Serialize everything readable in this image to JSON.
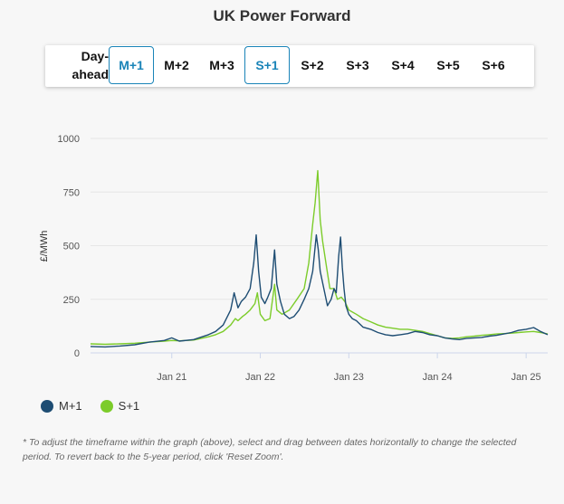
{
  "header": {
    "title": "UK Power Forward"
  },
  "tabs": [
    {
      "label_line1": "Day-",
      "label_line2": "ahead",
      "active": false
    },
    {
      "label": "M+1",
      "active": true
    },
    {
      "label": "M+2",
      "active": false
    },
    {
      "label": "M+3",
      "active": false
    },
    {
      "label": "S+1",
      "active": true
    },
    {
      "label": "S+2",
      "active": false
    },
    {
      "label": "S+3",
      "active": false
    },
    {
      "label": "S+4",
      "active": false
    },
    {
      "label": "S+5",
      "active": false
    },
    {
      "label": "S+6",
      "active": false
    }
  ],
  "colors": {
    "accent": "#1a84b8",
    "m1": "#1e4d73",
    "s1": "#7ccc2a",
    "grid": "#e6e6e6"
  },
  "chart_data": {
    "type": "line",
    "title": "",
    "xlabel": "",
    "ylabel": "£/MWh",
    "ylim": [
      0,
      1000
    ],
    "yticks": [
      0,
      250,
      500,
      750,
      1000
    ],
    "xticks": [
      "Jan 21",
      "Jan 22",
      "Jan 23",
      "Jan 24",
      "Jan 25"
    ],
    "xlim": [
      "2020-02-01",
      "2025-03-31"
    ],
    "grid": true,
    "legend": "bottom-left",
    "series": [
      {
        "name": "M+1",
        "color": "#1e4d73",
        "points": [
          [
            "2020-02-01",
            30
          ],
          [
            "2020-04-01",
            28
          ],
          [
            "2020-06-01",
            32
          ],
          [
            "2020-08-01",
            38
          ],
          [
            "2020-10-01",
            50
          ],
          [
            "2020-12-01",
            58
          ],
          [
            "2021-01-01",
            70
          ],
          [
            "2021-02-01",
            55
          ],
          [
            "2021-04-01",
            62
          ],
          [
            "2021-06-01",
            85
          ],
          [
            "2021-07-01",
            100
          ],
          [
            "2021-08-01",
            130
          ],
          [
            "2021-09-01",
            200
          ],
          [
            "2021-09-15",
            280
          ],
          [
            "2021-10-01",
            210
          ],
          [
            "2021-10-15",
            240
          ],
          [
            "2021-11-01",
            260
          ],
          [
            "2021-11-20",
            300
          ],
          [
            "2021-12-05",
            420
          ],
          [
            "2021-12-15",
            550
          ],
          [
            "2021-12-25",
            380
          ],
          [
            "2022-01-05",
            260
          ],
          [
            "2022-01-20",
            230
          ],
          [
            "2022-02-01",
            260
          ],
          [
            "2022-02-15",
            300
          ],
          [
            "2022-03-01",
            480
          ],
          [
            "2022-03-10",
            320
          ],
          [
            "2022-03-25",
            240
          ],
          [
            "2022-04-10",
            180
          ],
          [
            "2022-05-01",
            160
          ],
          [
            "2022-05-20",
            170
          ],
          [
            "2022-06-10",
            200
          ],
          [
            "2022-07-01",
            250
          ],
          [
            "2022-07-20",
            300
          ],
          [
            "2022-08-05",
            380
          ],
          [
            "2022-08-20",
            550
          ],
          [
            "2022-08-28",
            480
          ],
          [
            "2022-09-05",
            380
          ],
          [
            "2022-09-20",
            300
          ],
          [
            "2022-10-05",
            220
          ],
          [
            "2022-10-20",
            250
          ],
          [
            "2022-11-01",
            300
          ],
          [
            "2022-11-10",
            280
          ],
          [
            "2022-11-20",
            450
          ],
          [
            "2022-11-28",
            540
          ],
          [
            "2022-12-05",
            400
          ],
          [
            "2022-12-12",
            300
          ],
          [
            "2022-12-20",
            220
          ],
          [
            "2023-01-01",
            180
          ],
          [
            "2023-01-15",
            160
          ],
          [
            "2023-02-01",
            150
          ],
          [
            "2023-03-01",
            120
          ],
          [
            "2023-04-01",
            110
          ],
          [
            "2023-05-01",
            95
          ],
          [
            "2023-06-01",
            85
          ],
          [
            "2023-07-01",
            80
          ],
          [
            "2023-08-01",
            85
          ],
          [
            "2023-09-01",
            90
          ],
          [
            "2023-10-01",
            100
          ],
          [
            "2023-11-01",
            95
          ],
          [
            "2023-12-01",
            85
          ],
          [
            "2024-01-01",
            80
          ],
          [
            "2024-02-01",
            70
          ],
          [
            "2024-03-01",
            65
          ],
          [
            "2024-04-01",
            62
          ],
          [
            "2024-05-01",
            68
          ],
          [
            "2024-06-01",
            70
          ],
          [
            "2024-07-01",
            72
          ],
          [
            "2024-08-01",
            78
          ],
          [
            "2024-09-01",
            82
          ],
          [
            "2024-10-01",
            88
          ],
          [
            "2024-11-01",
            95
          ],
          [
            "2024-12-01",
            105
          ],
          [
            "2025-01-01",
            110
          ],
          [
            "2025-02-01",
            118
          ],
          [
            "2025-03-01",
            100
          ],
          [
            "2025-03-31",
            85
          ]
        ]
      },
      {
        "name": "S+1",
        "color": "#7ccc2a",
        "points": [
          [
            "2020-02-01",
            42
          ],
          [
            "2020-04-01",
            40
          ],
          [
            "2020-06-01",
            42
          ],
          [
            "2020-08-01",
            45
          ],
          [
            "2020-10-01",
            50
          ],
          [
            "2020-12-01",
            55
          ],
          [
            "2021-01-01",
            58
          ],
          [
            "2021-02-01",
            56
          ],
          [
            "2021-04-01",
            60
          ],
          [
            "2021-06-01",
            75
          ],
          [
            "2021-07-01",
            85
          ],
          [
            "2021-08-01",
            100
          ],
          [
            "2021-09-01",
            130
          ],
          [
            "2021-09-20",
            160
          ],
          [
            "2021-10-01",
            150
          ],
          [
            "2021-10-20",
            170
          ],
          [
            "2021-11-01",
            180
          ],
          [
            "2021-11-20",
            200
          ],
          [
            "2021-12-10",
            230
          ],
          [
            "2021-12-20",
            280
          ],
          [
            "2022-01-01",
            180
          ],
          [
            "2022-01-20",
            150
          ],
          [
            "2022-02-10",
            160
          ],
          [
            "2022-03-01",
            320
          ],
          [
            "2022-03-10",
            200
          ],
          [
            "2022-04-01",
            180
          ],
          [
            "2022-05-01",
            200
          ],
          [
            "2022-06-01",
            250
          ],
          [
            "2022-07-01",
            300
          ],
          [
            "2022-07-20",
            420
          ],
          [
            "2022-08-05",
            600
          ],
          [
            "2022-08-15",
            700
          ],
          [
            "2022-08-26",
            850
          ],
          [
            "2022-09-05",
            620
          ],
          [
            "2022-09-15",
            520
          ],
          [
            "2022-10-01",
            400
          ],
          [
            "2022-10-15",
            300
          ],
          [
            "2022-11-01",
            300
          ],
          [
            "2022-11-15",
            250
          ],
          [
            "2022-12-01",
            260
          ],
          [
            "2022-12-15",
            240
          ],
          [
            "2023-01-01",
            200
          ],
          [
            "2023-02-01",
            180
          ],
          [
            "2023-03-01",
            160
          ],
          [
            "2023-04-01",
            145
          ],
          [
            "2023-05-01",
            130
          ],
          [
            "2023-06-01",
            120
          ],
          [
            "2023-07-01",
            115
          ],
          [
            "2023-08-01",
            110
          ],
          [
            "2023-09-01",
            110
          ],
          [
            "2023-10-01",
            105
          ],
          [
            "2023-11-01",
            100
          ],
          [
            "2023-12-01",
            90
          ],
          [
            "2024-01-01",
            80
          ],
          [
            "2024-02-01",
            70
          ],
          [
            "2024-03-01",
            68
          ],
          [
            "2024-04-01",
            70
          ],
          [
            "2024-05-01",
            75
          ],
          [
            "2024-06-01",
            78
          ],
          [
            "2024-07-01",
            82
          ],
          [
            "2024-08-01",
            85
          ],
          [
            "2024-09-01",
            88
          ],
          [
            "2024-10-01",
            90
          ],
          [
            "2024-11-01",
            92
          ],
          [
            "2024-12-01",
            95
          ],
          [
            "2025-01-01",
            98
          ],
          [
            "2025-02-01",
            100
          ],
          [
            "2025-03-01",
            95
          ],
          [
            "2025-03-31",
            88
          ]
        ]
      }
    ]
  },
  "footnote": "* To adjust the timeframe within the graph (above), select and drag between dates horizontally to change the selected period. To revert back to the 5-year period, click 'Reset Zoom'."
}
